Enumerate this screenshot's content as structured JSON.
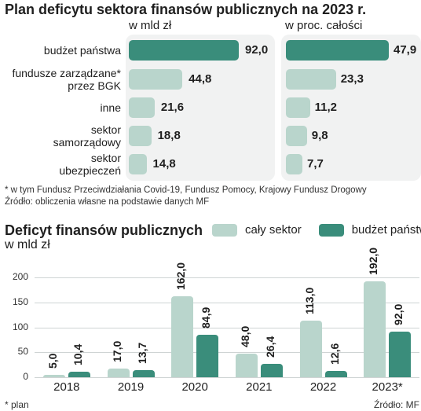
{
  "title": "Plan deficytu sektora finansów publicznych na 2023 r.",
  "colors": {
    "dark": "#3a8d7b",
    "light": "#b9d5cc",
    "panel": "#f1f2f2",
    "grid": "#cfd4d4"
  },
  "chart_data": [
    {
      "type": "bar",
      "orientation": "horizontal",
      "title": "w mld zł",
      "categories": [
        "budżet państwa",
        "fundusze zarządzane* przez BGK",
        "inne",
        "sektor samorządowy",
        "sektor ubezpieczeń"
      ],
      "category_lines": [
        [
          "budżet państwa"
        ],
        [
          "fundusze zarządzane*",
          "przez BGK"
        ],
        [
          "inne"
        ],
        [
          "sektor",
          "samorządowy"
        ],
        [
          "sektor",
          "ubezpieczeń"
        ]
      ],
      "values": [
        92.0,
        44.8,
        21.6,
        18.8,
        14.8
      ],
      "labels": [
        "92,0",
        "44,8",
        "21,6",
        "18,8",
        "14,8"
      ],
      "highlight_index": 0,
      "xlim": [
        0,
        92
      ]
    },
    {
      "type": "bar",
      "orientation": "horizontal",
      "title": "w proc. całości",
      "categories": [
        "budżet państwa",
        "fundusze zarządzane* przez BGK",
        "inne",
        "sektor samorządowy",
        "sektor ubezpieczeń"
      ],
      "values": [
        47.9,
        23.3,
        11.2,
        9.8,
        7.7
      ],
      "labels": [
        "47,9",
        "23,3",
        "11,2",
        "9,8",
        "7,7"
      ],
      "highlight_index": 0,
      "xlim": [
        0,
        47.9
      ]
    },
    {
      "type": "bar",
      "title": "Deficyt finansów publicznych",
      "subtitle": "w mld zł",
      "categories": [
        "2018",
        "2019",
        "2020",
        "2021",
        "2022",
        "2023*"
      ],
      "series": [
        {
          "name": "cały sektor",
          "values": [
            5.0,
            17.0,
            162.0,
            48.0,
            113.0,
            192.0
          ],
          "labels": [
            "5,0",
            "17,0",
            "162,0",
            "48,0",
            "113,0",
            "192,0"
          ]
        },
        {
          "name": "budżet państwa",
          "values": [
            10.4,
            13.7,
            84.9,
            26.4,
            12.6,
            92.0
          ],
          "labels": [
            "10,4",
            "13,7",
            "84,9",
            "26,4",
            "12,6",
            "92,0"
          ]
        }
      ],
      "yticks": [
        "0",
        "50",
        "100",
        "150",
        "200"
      ],
      "ylim": [
        0,
        200
      ],
      "grid": true,
      "legend": "top-right"
    }
  ],
  "notes": {
    "footnote": "* w tym Fundusz Przeciwdziałania Covid-19, Fundusz Pomocy, Krajowy Fundusz Drogowy",
    "source_top": "Źródło: obliczenia własne na podstawie danych MF",
    "plan": "* plan",
    "source_bottom": "Źródło: MF"
  }
}
